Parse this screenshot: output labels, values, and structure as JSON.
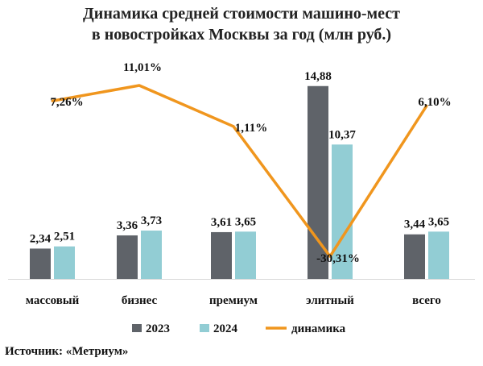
{
  "title_line1": "Динамика средней стоимости машино-мест",
  "title_line2": "в новостройках Москвы за год (млн руб.)",
  "source": "Источник: «Метриум»",
  "colors": {
    "bar2023": "#5f6369",
    "bar2024": "#92cdd4",
    "line": "#f0961e"
  },
  "chart_data": {
    "type": "bar",
    "categories": [
      "массовый",
      "бизнес",
      "премиум",
      "элитный",
      "всего"
    ],
    "series": [
      {
        "name": "2023",
        "values": [
          2.34,
          3.36,
          3.61,
          14.88,
          3.44
        ],
        "labels": [
          "2,34",
          "3,36",
          "3,61",
          "14,88",
          "3,44"
        ]
      },
      {
        "name": "2024",
        "values": [
          2.51,
          3.73,
          3.65,
          10.37,
          3.65
        ],
        "labels": [
          "2,51",
          "3,73",
          "3,65",
          "10,37",
          "3,65"
        ]
      }
    ],
    "line_series": {
      "name": "динамика",
      "values": [
        7.26,
        11.01,
        1.11,
        -30.31,
        6.1
      ],
      "labels": [
        "7,26%",
        "11,01%",
        "1,11%",
        "-30,31%",
        "6,10%"
      ]
    },
    "legend": [
      "2023",
      "2024",
      "динамика"
    ],
    "legend_position": "bottom",
    "grid": false
  }
}
